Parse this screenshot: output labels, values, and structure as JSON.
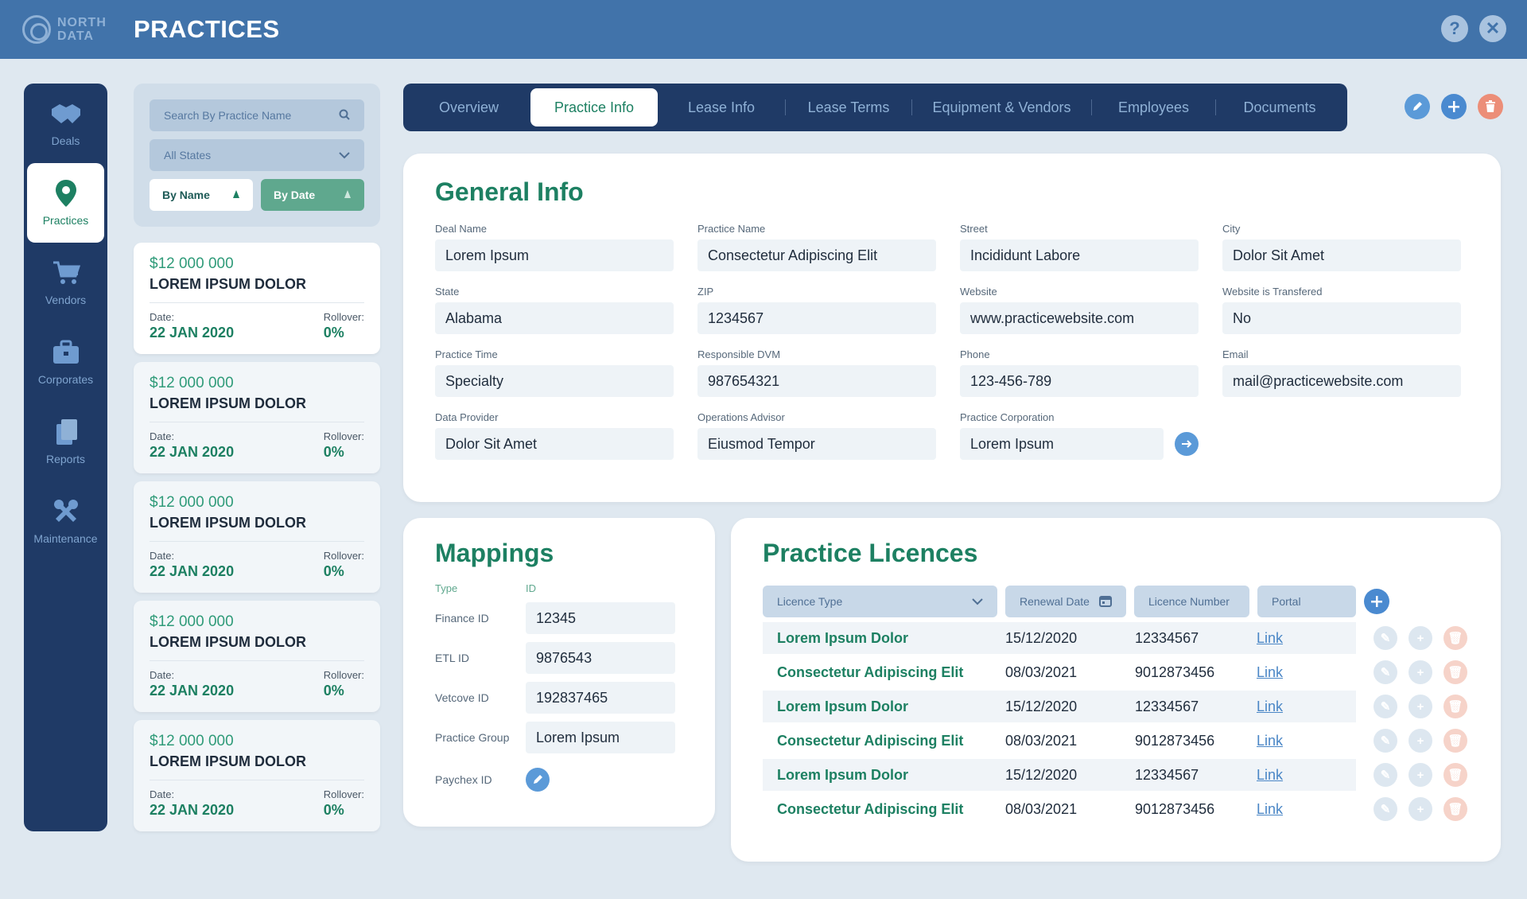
{
  "app": {
    "logo_line1": "NORTH",
    "logo_line2": "DATA",
    "title": "PRACTICES"
  },
  "topbar_icons": [
    "help-icon",
    "close-icon"
  ],
  "nav": [
    {
      "label": "Deals",
      "icon": "handshake-icon",
      "active": false
    },
    {
      "label": "Practices",
      "icon": "map-pin-icon",
      "active": true
    },
    {
      "label": "Vendors",
      "icon": "cart-icon",
      "active": false
    },
    {
      "label": "Corporates",
      "icon": "briefcase-icon",
      "active": false
    },
    {
      "label": "Reports",
      "icon": "documents-icon",
      "active": false
    },
    {
      "label": "Maintenance",
      "icon": "tools-icon",
      "active": false
    }
  ],
  "filters": {
    "search_placeholder": "Search By Practice Name",
    "state": "All States",
    "sort_name": "By Name",
    "sort_date": "By Date"
  },
  "deals": [
    {
      "amount": "$12 000 000",
      "name": "LOREM IPSUM DOLOR",
      "date_label": "Date:",
      "date": "22 JAN 2020",
      "rollover_label": "Rollover:",
      "rollover": "0%"
    },
    {
      "amount": "$12 000 000",
      "name": "LOREM IPSUM DOLOR",
      "date_label": "Date:",
      "date": "22 JAN 2020",
      "rollover_label": "Rollover:",
      "rollover": "0%"
    },
    {
      "amount": "$12 000 000",
      "name": "LOREM IPSUM DOLOR",
      "date_label": "Date:",
      "date": "22 JAN 2020",
      "rollover_label": "Rollover:",
      "rollover": "0%"
    },
    {
      "amount": "$12 000 000",
      "name": "LOREM IPSUM DOLOR",
      "date_label": "Date:",
      "date": "22 JAN 2020",
      "rollover_label": "Rollover:",
      "rollover": "0%"
    },
    {
      "amount": "$12 000 000",
      "name": "LOREM IPSUM DOLOR",
      "date_label": "Date:",
      "date": "22 JAN 2020",
      "rollover_label": "Rollover:",
      "rollover": "0%"
    }
  ],
  "tabs": [
    "Overview",
    "Practice Info",
    "Lease Info",
    "Lease Terms",
    "Equipment & Vendors",
    "Employees",
    "Documents"
  ],
  "active_tab": "Practice Info",
  "general": {
    "title": "General Info",
    "fields": [
      {
        "label": "Deal Name",
        "value": "Lorem Ipsum"
      },
      {
        "label": "Practice Name",
        "value": "Consectetur Adipiscing Elit"
      },
      {
        "label": "Street",
        "value": "Incididunt Labore"
      },
      {
        "label": "City",
        "value": "Dolor Sit Amet"
      },
      {
        "label": "State",
        "value": "Alabama"
      },
      {
        "label": "ZIP",
        "value": "1234567"
      },
      {
        "label": "Website",
        "value": "www.practicewebsite.com"
      },
      {
        "label": "Website is Transfered",
        "value": "No"
      },
      {
        "label": "Practice Time",
        "value": "Specialty"
      },
      {
        "label": "Responsible DVM",
        "value": "987654321"
      },
      {
        "label": "Phone",
        "value": "123-456-789"
      },
      {
        "label": "Email",
        "value": "mail@practicewebsite.com"
      },
      {
        "label": "Data Provider",
        "value": "Dolor Sit Amet"
      },
      {
        "label": "Operations Advisor",
        "value": "Eiusmod Tempor"
      },
      {
        "label": "Practice Corporation",
        "value": "Lorem Ipsum"
      }
    ]
  },
  "mappings": {
    "title": "Mappings",
    "col_type": "Type",
    "col_id": "ID",
    "rows": [
      {
        "type": "Finance ID",
        "id": "12345"
      },
      {
        "type": "ETL ID",
        "id": "9876543"
      },
      {
        "type": "Vetcove ID",
        "id": "192837465"
      },
      {
        "type": "Practice Group",
        "id": "Lorem Ipsum"
      },
      {
        "type": "Paychex ID",
        "id": ""
      }
    ]
  },
  "licences": {
    "title": "Practice Licences",
    "headers": {
      "type": "Licence Type",
      "renewal": "Renewal Date",
      "number": "Licence Number",
      "portal": "Portal"
    },
    "rows": [
      {
        "type": "Lorem Ipsum Dolor",
        "date": "15/12/2020",
        "number": "12334567",
        "portal": "Link"
      },
      {
        "type": "Consectetur Adipiscing Elit",
        "date": "08/03/2021",
        "number": "9012873456",
        "portal": "Link"
      },
      {
        "type": "Lorem Ipsum Dolor",
        "date": "15/12/2020",
        "number": "12334567",
        "portal": "Link"
      },
      {
        "type": "Consectetur Adipiscing Elit",
        "date": "08/03/2021",
        "number": "9012873456",
        "portal": "Link"
      },
      {
        "type": "Lorem Ipsum Dolor",
        "date": "15/12/2020",
        "number": "12334567",
        "portal": "Link"
      },
      {
        "type": "Consectetur Adipiscing Elit",
        "date": "08/03/2021",
        "number": "9012873456",
        "portal": "Link"
      }
    ]
  },
  "colors": {
    "topbar": "#4173aa",
    "nav": "#1f3a66",
    "accent": "#1d8062",
    "edit": "#5b9ad8",
    "add": "#4a8ad0",
    "delete": "#ec8e78"
  }
}
